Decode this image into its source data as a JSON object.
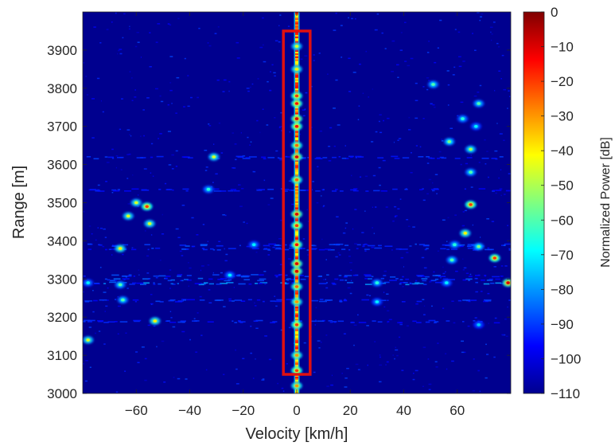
{
  "chart_data": {
    "type": "heatmap",
    "title": "",
    "xlabel": "Velocity [km/h]",
    "ylabel": "Range [m]",
    "xlim": [
      -80,
      80
    ],
    "ylim": [
      3000,
      4000
    ],
    "xticks": [
      -60,
      -40,
      -20,
      0,
      20,
      40,
      60
    ],
    "xtick_labels": [
      "−60",
      "−40",
      "−20",
      "0",
      "20",
      "40",
      "60"
    ],
    "yticks": [
      3000,
      3100,
      3200,
      3300,
      3400,
      3500,
      3600,
      3700,
      3800,
      3900
    ],
    "ytick_labels": [
      "3000",
      "3100",
      "3200",
      "3300",
      "3400",
      "3500",
      "3600",
      "3700",
      "3800",
      "3900"
    ],
    "colormap": "jet",
    "colorbar": {
      "label": "Normalized Power [dB]",
      "range": [
        -110,
        0
      ],
      "ticks": [
        0,
        -10,
        -20,
        -30,
        -40,
        -50,
        -60,
        -70,
        -80,
        -90,
        -100,
        -110
      ],
      "tick_labels": [
        "0",
        "−10",
        "−20",
        "−30",
        "−40",
        "−50",
        "−60",
        "−70",
        "−80",
        "−90",
        "−100",
        "−110"
      ]
    },
    "background_level_db": -108,
    "zero_doppler_line": {
      "x": 0,
      "y_range": [
        3000,
        4000
      ],
      "level_db": -35
    },
    "targets": [
      {
        "x": 0,
        "y": 3910,
        "db": -45
      },
      {
        "x": 0,
        "y": 3850,
        "db": -40
      },
      {
        "x": 0,
        "y": 3780,
        "db": -20
      },
      {
        "x": 0,
        "y": 3760,
        "db": -15
      },
      {
        "x": 0,
        "y": 3720,
        "db": -10
      },
      {
        "x": 0,
        "y": 3700,
        "db": -15
      },
      {
        "x": 0,
        "y": 3650,
        "db": -25
      },
      {
        "x": 0,
        "y": 3620,
        "db": -10
      },
      {
        "x": 0,
        "y": 3560,
        "db": -25
      },
      {
        "x": 0,
        "y": 3470,
        "db": -10
      },
      {
        "x": 0,
        "y": 3440,
        "db": -20
      },
      {
        "x": 0,
        "y": 3390,
        "db": -15
      },
      {
        "x": 0,
        "y": 3340,
        "db": -10
      },
      {
        "x": 0,
        "y": 3320,
        "db": -10
      },
      {
        "x": 0,
        "y": 3280,
        "db": -25
      },
      {
        "x": 0,
        "y": 3240,
        "db": -30
      },
      {
        "x": 0,
        "y": 3180,
        "db": -20
      },
      {
        "x": 0,
        "y": 3100,
        "db": -30
      },
      {
        "x": 0,
        "y": 3060,
        "db": -20
      },
      {
        "x": 0,
        "y": 3020,
        "db": -30
      },
      {
        "x": -31,
        "y": 3620,
        "db": -45
      },
      {
        "x": -60,
        "y": 3500,
        "db": -45
      },
      {
        "x": -63,
        "y": 3465,
        "db": -45
      },
      {
        "x": -56,
        "y": 3490,
        "db": -20
      },
      {
        "x": -55,
        "y": 3445,
        "db": -45
      },
      {
        "x": -66,
        "y": 3380,
        "db": -40
      },
      {
        "x": -53,
        "y": 3190,
        "db": -40
      },
      {
        "x": -78,
        "y": 3140,
        "db": -45
      },
      {
        "x": -65,
        "y": 3245,
        "db": -60
      },
      {
        "x": -66,
        "y": 3285,
        "db": -60
      },
      {
        "x": -16,
        "y": 3390,
        "db": -70
      },
      {
        "x": -33,
        "y": 3535,
        "db": -65
      },
      {
        "x": -25,
        "y": 3310,
        "db": -70
      },
      {
        "x": -78,
        "y": 3290,
        "db": -70
      },
      {
        "x": 51,
        "y": 3810,
        "db": -60
      },
      {
        "x": 68,
        "y": 3760,
        "db": -60
      },
      {
        "x": 62,
        "y": 3720,
        "db": -65
      },
      {
        "x": 67,
        "y": 3700,
        "db": -70
      },
      {
        "x": 57,
        "y": 3660,
        "db": -55
      },
      {
        "x": 65,
        "y": 3640,
        "db": -50
      },
      {
        "x": 65,
        "y": 3580,
        "db": -60
      },
      {
        "x": 65,
        "y": 3495,
        "db": -20
      },
      {
        "x": 63,
        "y": 3420,
        "db": -40
      },
      {
        "x": 59,
        "y": 3390,
        "db": -65
      },
      {
        "x": 68,
        "y": 3385,
        "db": -55
      },
      {
        "x": 74,
        "y": 3355,
        "db": -20
      },
      {
        "x": 58,
        "y": 3350,
        "db": -60
      },
      {
        "x": 79,
        "y": 3290,
        "db": -10
      },
      {
        "x": 30,
        "y": 3290,
        "db": -65
      },
      {
        "x": 30,
        "y": 3240,
        "db": -70
      },
      {
        "x": 56,
        "y": 3290,
        "db": -70
      },
      {
        "x": 68,
        "y": 3180,
        "db": -75
      }
    ],
    "annotation": {
      "shape": "rectangle",
      "color": "#e01010",
      "x_range": [
        -5,
        5
      ],
      "y_range": [
        3050,
        3950
      ]
    }
  }
}
